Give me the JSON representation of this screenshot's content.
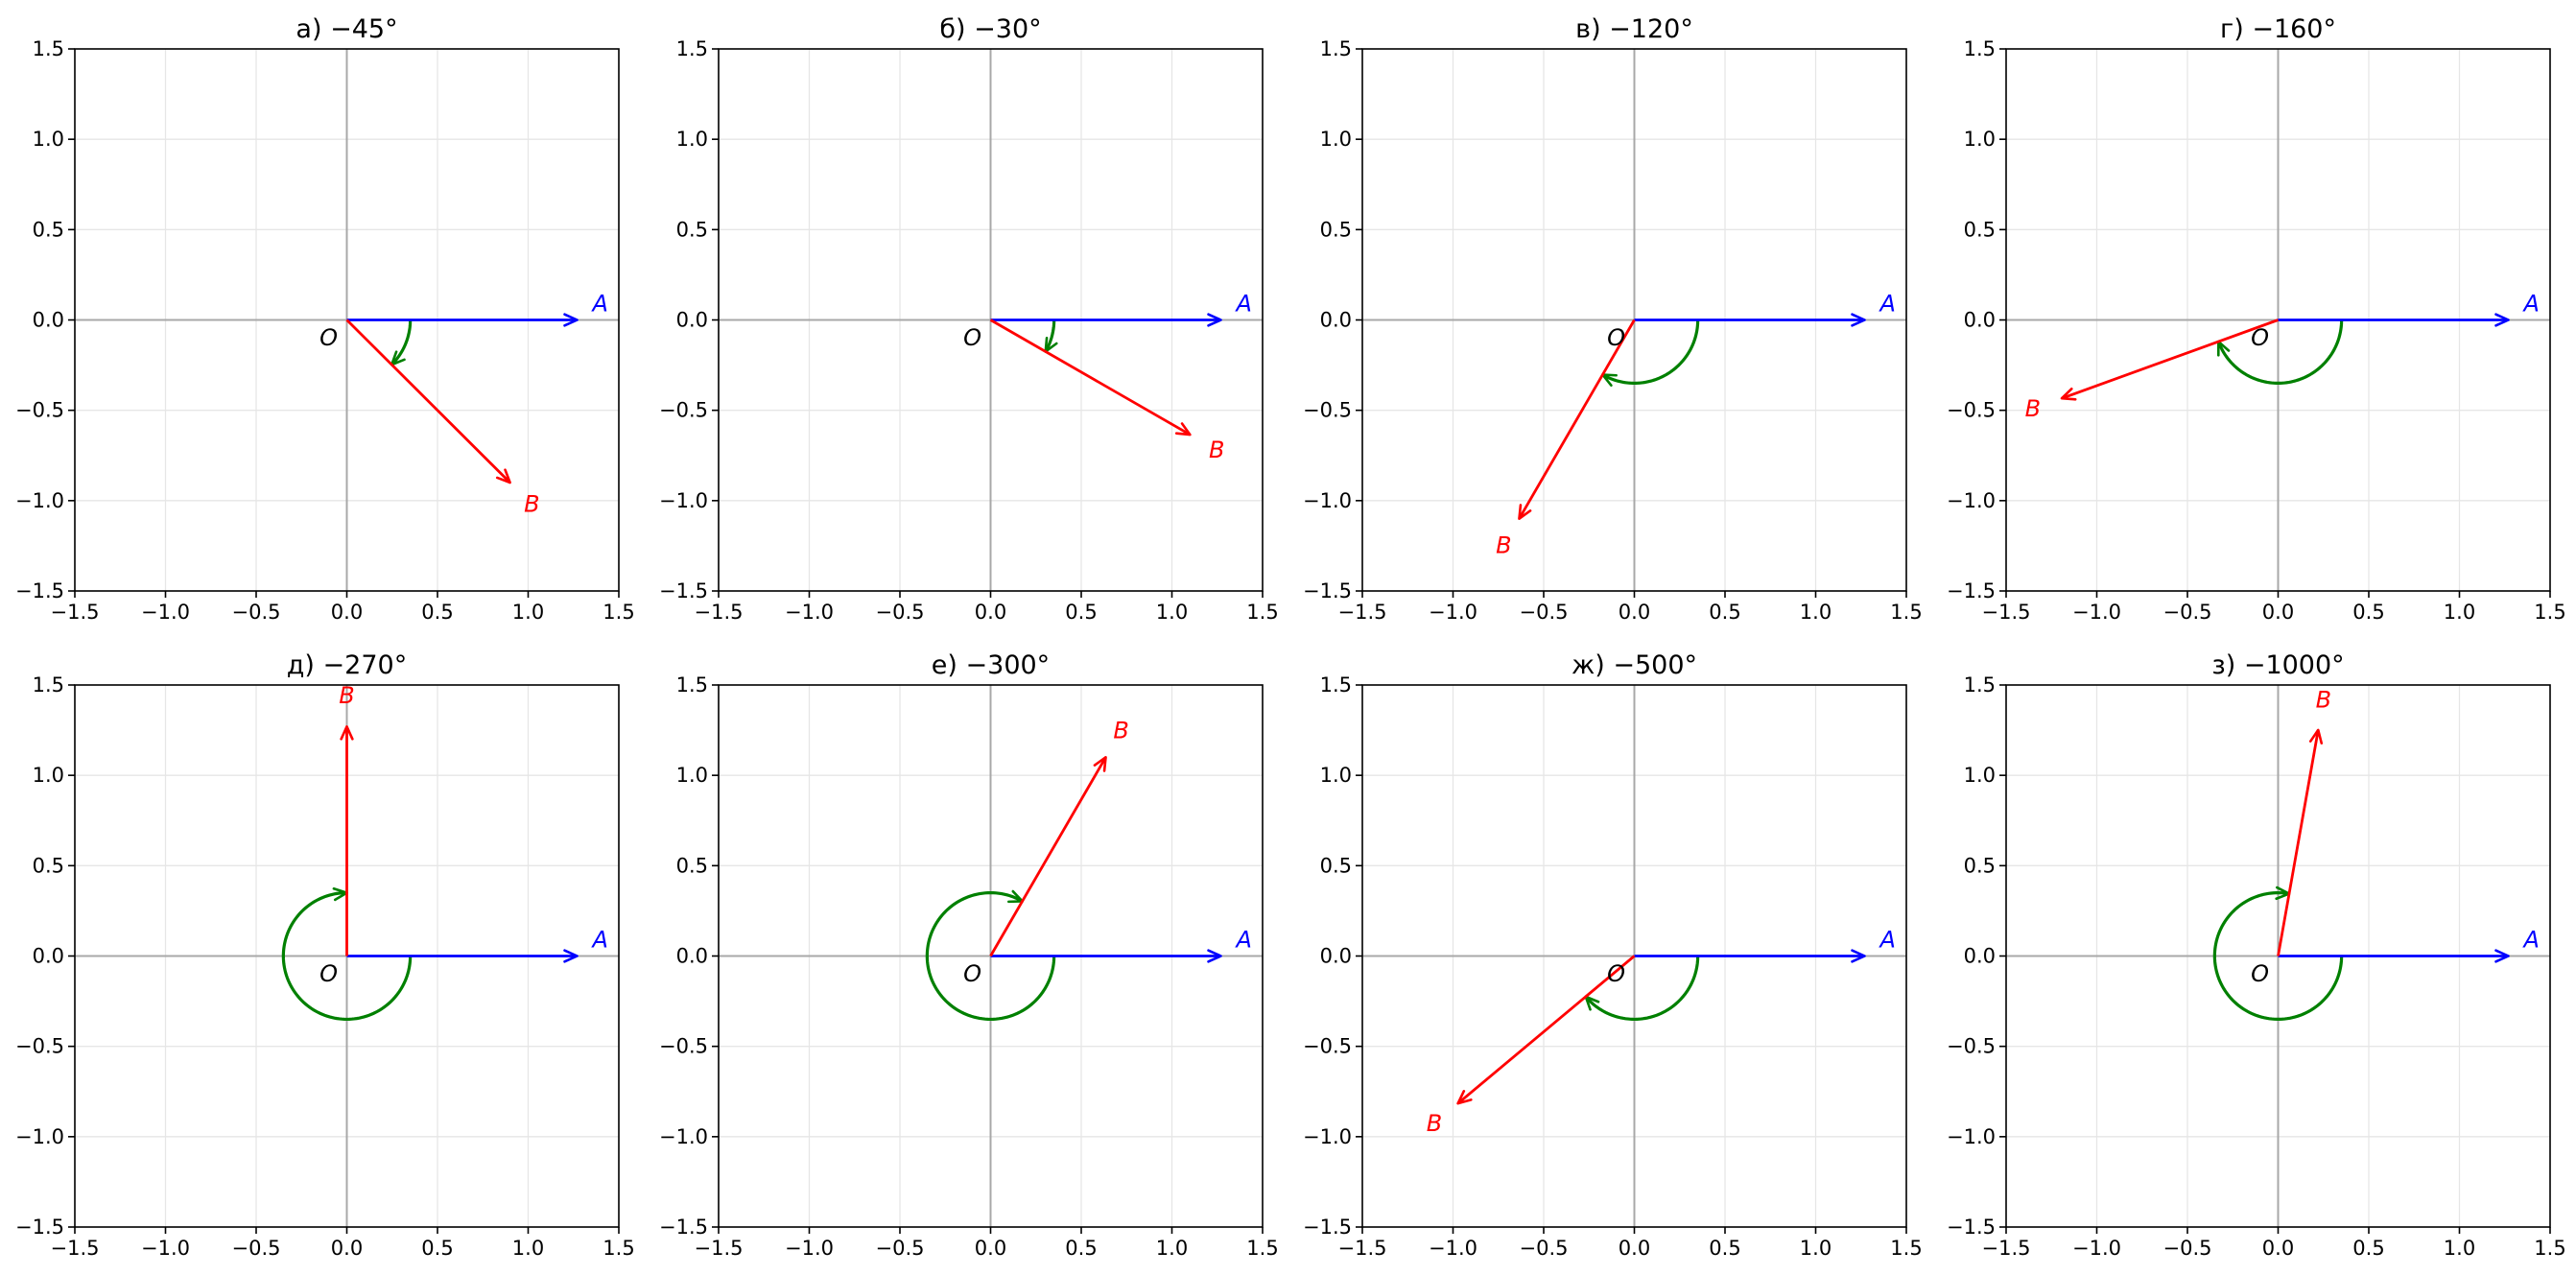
{
  "chart_data": [
    {
      "type": "line",
      "title": "а) −45°",
      "angle_deg": -45,
      "xlim": [
        -1.5,
        1.5
      ],
      "ylim": [
        -1.5,
        1.5
      ],
      "xticks": [
        "−1.5",
        "−1.0",
        "−0.5",
        "0.0",
        "0.5",
        "1.0",
        "1.5"
      ],
      "yticks": [
        "1.5",
        "1.0",
        "0.5",
        "0.0",
        "−0.5",
        "−1.0",
        "−1.5"
      ],
      "origin_label": "O",
      "vector_OA": {
        "label": "A",
        "tip": [
          1.27,
          0.0
        ],
        "color": "#0000ff"
      },
      "vector_OB": {
        "label": "B",
        "tip": [
          0.9,
          -0.9
        ],
        "color": "#ff0000"
      },
      "rotation_arc": {
        "radius": 0.35,
        "color": "#008000"
      },
      "grid": true
    },
    {
      "type": "line",
      "title": "б) −30°",
      "angle_deg": -30,
      "xlim": [
        -1.5,
        1.5
      ],
      "ylim": [
        -1.5,
        1.5
      ],
      "xticks": [
        "−1.5",
        "−1.0",
        "−0.5",
        "0.0",
        "0.5",
        "1.0",
        "1.5"
      ],
      "yticks": [
        "1.5",
        "1.0",
        "0.5",
        "0.0",
        "−0.5",
        "−1.0",
        "−1.5"
      ],
      "origin_label": "O",
      "vector_OA": {
        "label": "A",
        "tip": [
          1.27,
          0.0
        ],
        "color": "#0000ff"
      },
      "vector_OB": {
        "label": "B",
        "tip": [
          1.1,
          -0.635
        ],
        "color": "#ff0000"
      },
      "rotation_arc": {
        "radius": 0.35,
        "color": "#008000"
      },
      "grid": true
    },
    {
      "type": "line",
      "title": "в) −120°",
      "angle_deg": -120,
      "xlim": [
        -1.5,
        1.5
      ],
      "ylim": [
        -1.5,
        1.5
      ],
      "xticks": [
        "−1.5",
        "−1.0",
        "−0.5",
        "0.0",
        "0.5",
        "1.0",
        "1.5"
      ],
      "yticks": [
        "1.5",
        "1.0",
        "0.5",
        "0.0",
        "−0.5",
        "−1.0",
        "−1.5"
      ],
      "origin_label": "O",
      "vector_OA": {
        "label": "A",
        "tip": [
          1.27,
          0.0
        ],
        "color": "#0000ff"
      },
      "vector_OB": {
        "label": "B",
        "tip": [
          -0.635,
          -1.1
        ],
        "color": "#ff0000"
      },
      "rotation_arc": {
        "radius": 0.35,
        "color": "#008000"
      },
      "grid": true
    },
    {
      "type": "line",
      "title": "г) −160°",
      "angle_deg": -160,
      "xlim": [
        -1.5,
        1.5
      ],
      "ylim": [
        -1.5,
        1.5
      ],
      "xticks": [
        "−1.5",
        "−1.0",
        "−0.5",
        "0.0",
        "0.5",
        "1.0",
        "1.5"
      ],
      "yticks": [
        "1.5",
        "1.0",
        "0.5",
        "0.0",
        "−0.5",
        "−1.0",
        "−1.5"
      ],
      "origin_label": "O",
      "vector_OA": {
        "label": "A",
        "tip": [
          1.27,
          0.0
        ],
        "color": "#0000ff"
      },
      "vector_OB": {
        "label": "B",
        "tip": [
          -1.193,
          -0.434
        ],
        "color": "#ff0000"
      },
      "rotation_arc": {
        "radius": 0.35,
        "color": "#008000"
      },
      "grid": true
    },
    {
      "type": "line",
      "title": "д) −270°",
      "angle_deg": -270,
      "xlim": [
        -1.5,
        1.5
      ],
      "ylim": [
        -1.5,
        1.5
      ],
      "xticks": [
        "−1.5",
        "−1.0",
        "−0.5",
        "0.0",
        "0.5",
        "1.0",
        "1.5"
      ],
      "yticks": [
        "1.5",
        "1.0",
        "0.5",
        "0.0",
        "−0.5",
        "−1.0",
        "−1.5"
      ],
      "origin_label": "O",
      "vector_OA": {
        "label": "A",
        "tip": [
          1.27,
          0.0
        ],
        "color": "#0000ff"
      },
      "vector_OB": {
        "label": "B",
        "tip": [
          0.0,
          1.27
        ],
        "color": "#ff0000"
      },
      "rotation_arc": {
        "radius": 0.35,
        "color": "#008000"
      },
      "grid": true
    },
    {
      "type": "line",
      "title": "е) −300°",
      "angle_deg": -300,
      "xlim": [
        -1.5,
        1.5
      ],
      "ylim": [
        -1.5,
        1.5
      ],
      "xticks": [
        "−1.5",
        "−1.0",
        "−0.5",
        "0.0",
        "0.5",
        "1.0",
        "1.5"
      ],
      "yticks": [
        "1.5",
        "1.0",
        "0.5",
        "0.0",
        "−0.5",
        "−1.0",
        "−1.5"
      ],
      "origin_label": "O",
      "vector_OA": {
        "label": "A",
        "tip": [
          1.27,
          0.0
        ],
        "color": "#0000ff"
      },
      "vector_OB": {
        "label": "B",
        "tip": [
          0.635,
          1.1
        ],
        "color": "#ff0000"
      },
      "rotation_arc": {
        "radius": 0.35,
        "color": "#008000"
      },
      "grid": true
    },
    {
      "type": "line",
      "title": "ж) −500°",
      "angle_deg": -500,
      "xlim": [
        -1.5,
        1.5
      ],
      "ylim": [
        -1.5,
        1.5
      ],
      "xticks": [
        "−1.5",
        "−1.0",
        "−0.5",
        "0.0",
        "0.5",
        "1.0",
        "1.5"
      ],
      "yticks": [
        "1.5",
        "1.0",
        "0.5",
        "0.0",
        "−0.5",
        "−1.0",
        "−1.5"
      ],
      "origin_label": "O",
      "vector_OA": {
        "label": "A",
        "tip": [
          1.27,
          0.0
        ],
        "color": "#0000ff"
      },
      "vector_OB": {
        "label": "B",
        "tip": [
          -0.973,
          -0.816
        ],
        "color": "#ff0000"
      },
      "rotation_arc": {
        "radius": 0.35,
        "color": "#008000"
      },
      "grid": true
    },
    {
      "type": "line",
      "title": "з) −1000°",
      "angle_deg": -1000,
      "xlim": [
        -1.5,
        1.5
      ],
      "ylim": [
        -1.5,
        1.5
      ],
      "xticks": [
        "−1.5",
        "−1.0",
        "−0.5",
        "0.0",
        "0.5",
        "1.0",
        "1.5"
      ],
      "yticks": [
        "1.5",
        "1.0",
        "0.5",
        "0.0",
        "−0.5",
        "−1.0",
        "−1.5"
      ],
      "origin_label": "O",
      "vector_OA": {
        "label": "A",
        "tip": [
          1.27,
          0.0
        ],
        "color": "#0000ff"
      },
      "vector_OB": {
        "label": "B",
        "tip": [
          0.221,
          1.251
        ],
        "color": "#ff0000"
      },
      "rotation_arc": {
        "radius": 0.35,
        "color": "#008000"
      },
      "grid": true
    }
  ]
}
